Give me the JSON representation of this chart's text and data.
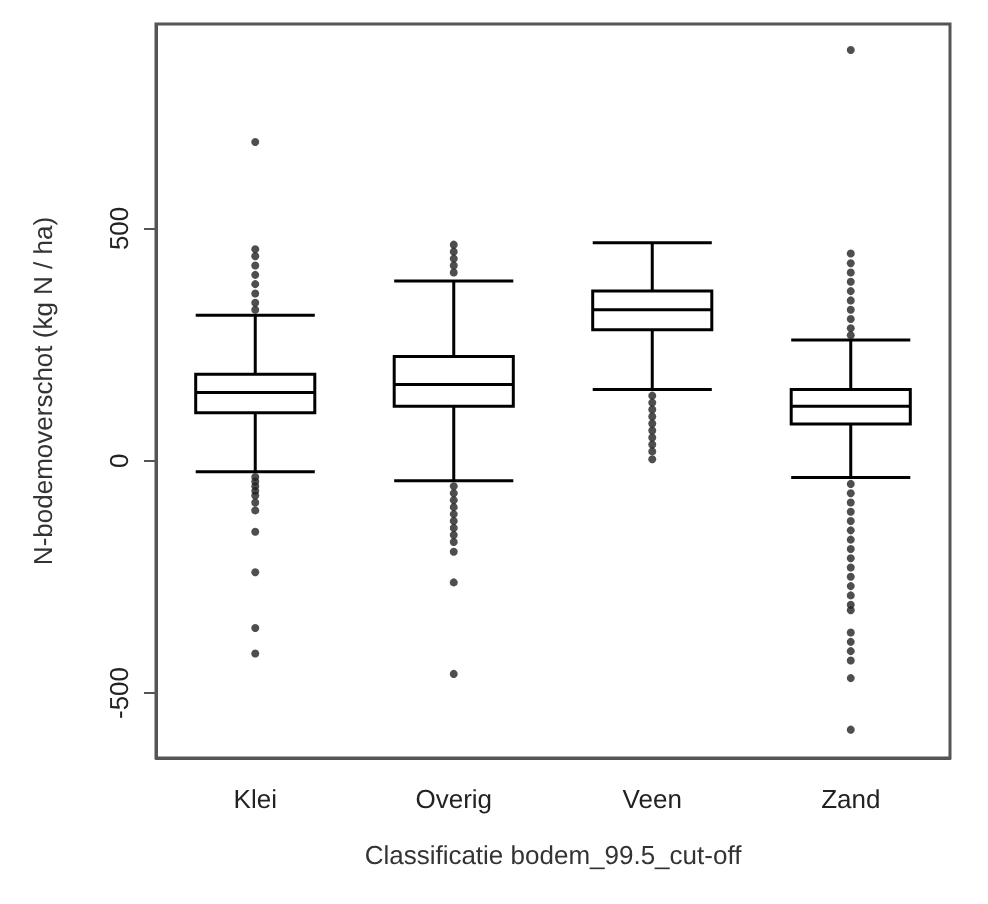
{
  "chart_data": {
    "type": "box",
    "xlabel": "Classificatie bodem_99.5_cut-off",
    "ylabel": "N-bodemoverschot (kg N / ha)",
    "categories": [
      "Klei",
      "Overig",
      "Veen",
      "Zand"
    ],
    "boxes": [
      {
        "low": -24,
        "q1": 103,
        "median": 147,
        "q3": 186,
        "high": 313,
        "outliers": [
          686,
          455,
          440,
          420,
          400,
          380,
          360,
          340,
          325,
          -35,
          -45,
          -55,
          -65,
          -75,
          -90,
          -107,
          -153,
          -240,
          -360,
          -415
        ]
      },
      {
        "low": -43,
        "q1": 117,
        "median": 164,
        "q3": 224,
        "high": 387,
        "outliers": [
          465,
          450,
          435,
          420,
          405,
          -55,
          -70,
          -85,
          -100,
          -115,
          -130,
          -145,
          -160,
          -175,
          -196,
          -262,
          -459
        ]
      },
      {
        "low": 153,
        "q1": 282,
        "median": 325,
        "q3": 365,
        "high": 469,
        "outliers": [
          140,
          125,
          110,
          95,
          80,
          65,
          50,
          35,
          20,
          3
        ]
      },
      {
        "low": -36,
        "q1": 79,
        "median": 117,
        "q3": 153,
        "high": 260,
        "outliers": [
          884,
          446,
          425,
          405,
          385,
          365,
          345,
          325,
          305,
          285,
          270,
          -50,
          -70,
          -90,
          -110,
          -130,
          -150,
          -170,
          -190,
          -210,
          -230,
          -250,
          -270,
          -290,
          -310,
          -322,
          -370,
          -390,
          -410,
          -430,
          -468,
          -579
        ]
      }
    ],
    "ylim": [
      -640,
      940
    ],
    "yticks": [
      -500,
      0,
      500
    ],
    "grid": false
  }
}
